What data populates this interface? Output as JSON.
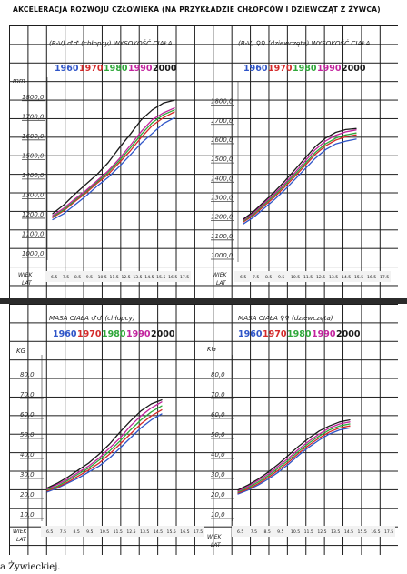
{
  "title": "AKCELERACJA ROZWOJU CZŁOWIEKA (NA PRZYKŁADZIE CHŁOPCÓW I DZIEWCZĄT Z ŻYWCA)",
  "footer": "a Żywieckiej.",
  "colors": {
    "1960": "#2f55c8",
    "1970": "#d42a2a",
    "1980": "#2fa83a",
    "1990": "#c2249e",
    "2000": "#1a1a1a"
  },
  "x_ticks": [
    "6.5",
    "7.5",
    "8.5",
    "9.5",
    "10.5",
    "11.5",
    "12.5",
    "13.5",
    "14.5",
    "15.5",
    "16.5",
    "17.5"
  ],
  "chart_data": [
    {
      "type": "line",
      "title": "(B-V) ♂♂ (chłopcy) WYSOKOŚĆ CIAŁA",
      "xlabel": "WIEK LAT",
      "ylabel": "mm",
      "y_ticks": [
        "1800,0",
        "1700,0",
        "1600,0",
        "1500,0",
        "1400,0",
        "1300,0",
        "1200,0",
        "1100,0",
        "1000,0"
      ],
      "ylim": [
        1000,
        1850
      ],
      "x": [
        6.5,
        7.5,
        8.5,
        9.5,
        10.5,
        11.5,
        12.5,
        13.5,
        14.5,
        15.5,
        16.5,
        17.5
      ],
      "series": [
        {
          "name": "1960",
          "values": [
            1170,
            1200,
            1245,
            1290,
            1340,
            1385,
            1440,
            1500,
            1560,
            1610,
            1660,
            1690
          ]
        },
        {
          "name": "1970",
          "values": [
            1180,
            1215,
            1262,
            1305,
            1355,
            1400,
            1460,
            1520,
            1590,
            1650,
            1690,
            1720
          ]
        },
        {
          "name": "1980",
          "values": [
            1185,
            1220,
            1268,
            1312,
            1362,
            1410,
            1470,
            1535,
            1605,
            1665,
            1705,
            1730
          ]
        },
        {
          "name": "1990",
          "values": [
            1190,
            1228,
            1275,
            1318,
            1368,
            1418,
            1480,
            1548,
            1620,
            1680,
            1715,
            1740
          ]
        },
        {
          "name": "2000",
          "values": [
            1200,
            1245,
            1300,
            1350,
            1400,
            1460,
            1535,
            1605,
            1680,
            1730,
            1765,
            1780
          ]
        }
      ]
    },
    {
      "type": "line",
      "title": "(B-V) ♀♀ (dziewczęta) WYSOKOŚĆ CIAŁA",
      "xlabel": "WIEK LAT",
      "ylabel": "",
      "y_ticks": [
        "1800,0",
        "1700,0",
        "1600,0",
        "1500,0",
        "1400,0",
        "1300,0",
        "1200,0",
        "1100,0",
        "1000,0"
      ],
      "ylim": [
        1000,
        1850
      ],
      "x": [
        6.5,
        7.5,
        8.5,
        9.5,
        10.5,
        11.5,
        12.5,
        13.5,
        14.5,
        15.5,
        16.5,
        17.5
      ],
      "series": [
        {
          "name": "1960",
          "values": [
            1160,
            1195,
            1240,
            1285,
            1335,
            1390,
            1445,
            1500,
            1545,
            1575,
            1590,
            1600
          ]
        },
        {
          "name": "1970",
          "values": [
            1170,
            1205,
            1252,
            1298,
            1350,
            1405,
            1462,
            1520,
            1565,
            1595,
            1612,
            1622
          ]
        },
        {
          "name": "1980",
          "values": [
            1175,
            1212,
            1260,
            1307,
            1360,
            1415,
            1472,
            1530,
            1575,
            1605,
            1622,
            1632
          ]
        },
        {
          "name": "1990",
          "values": [
            1180,
            1218,
            1267,
            1315,
            1368,
            1425,
            1485,
            1545,
            1590,
            1620,
            1638,
            1648
          ]
        },
        {
          "name": "2000",
          "values": [
            1185,
            1225,
            1275,
            1325,
            1380,
            1440,
            1500,
            1560,
            1605,
            1635,
            1650,
            1655
          ]
        }
      ]
    },
    {
      "type": "line",
      "title": "MASA CIAŁA ♂♂ (chłopcy)",
      "xlabel": "WIEK LAT",
      "ylabel": "KG",
      "y_ticks": [
        "80,0",
        "70,0",
        "60,0",
        "50,0",
        "40,0",
        "30,0",
        "20,0",
        "10,0"
      ],
      "ylim": [
        10,
        85
      ],
      "x": [
        6.5,
        7.5,
        8.5,
        9.5,
        10.5,
        11.5,
        12.5,
        13.5,
        14.5,
        15.5,
        16.5,
        17.5
      ],
      "series": [
        {
          "name": "1960",
          "values": [
            21,
            23,
            25.5,
            28,
            31,
            34,
            38,
            43,
            48,
            53,
            57,
            60
          ]
        },
        {
          "name": "1970",
          "values": [
            21.5,
            23.5,
            26,
            29,
            32,
            35.5,
            40,
            45,
            50,
            55,
            59,
            62
          ]
        },
        {
          "name": "1980",
          "values": [
            22,
            24,
            26.8,
            30,
            33,
            37,
            41.5,
            46.5,
            52,
            57,
            61,
            64
          ]
        },
        {
          "name": "1990",
          "values": [
            22.5,
            24.8,
            27.5,
            30.8,
            34,
            38,
            43,
            48,
            54,
            59,
            63,
            66
          ]
        },
        {
          "name": "2000",
          "values": [
            23,
            25.5,
            28.5,
            32,
            35.5,
            40,
            45,
            51,
            56.5,
            61.5,
            65,
            67
          ]
        }
      ]
    },
    {
      "type": "line",
      "title": "MASA CIAŁA ♀♀ (dziewczęta)",
      "xlabel": "WIEK LAT",
      "ylabel": "KG",
      "y_ticks": [
        "80,0",
        "70,0",
        "60,0",
        "50,0",
        "40,0",
        "30,0",
        "20,0",
        "10,0"
      ],
      "ylim": [
        10,
        85
      ],
      "x": [
        6.5,
        7.5,
        8.5,
        9.5,
        10.5,
        11.5,
        12.5,
        13.5,
        14.5,
        15.5,
        16.5,
        17.5
      ],
      "series": [
        {
          "name": "1960",
          "values": [
            20,
            22,
            24.5,
            27.5,
            31,
            35,
            39.5,
            43.5,
            47,
            50,
            52,
            53
          ]
        },
        {
          "name": "1970",
          "values": [
            20.5,
            22.5,
            25.2,
            28.3,
            32,
            36,
            40.5,
            44.5,
            48,
            51,
            53,
            54
          ]
        },
        {
          "name": "1980",
          "values": [
            21,
            23.2,
            26,
            29.2,
            33,
            37,
            41.5,
            45.5,
            49,
            52,
            54,
            55
          ]
        },
        {
          "name": "1990",
          "values": [
            21.5,
            23.8,
            26.8,
            30,
            34,
            38,
            42.5,
            46.5,
            50,
            53,
            55,
            56
          ]
        },
        {
          "name": "2000",
          "values": [
            22,
            24.5,
            27.5,
            31,
            35,
            39.5,
            44,
            48,
            51.5,
            54,
            56,
            57
          ]
        }
      ]
    }
  ]
}
